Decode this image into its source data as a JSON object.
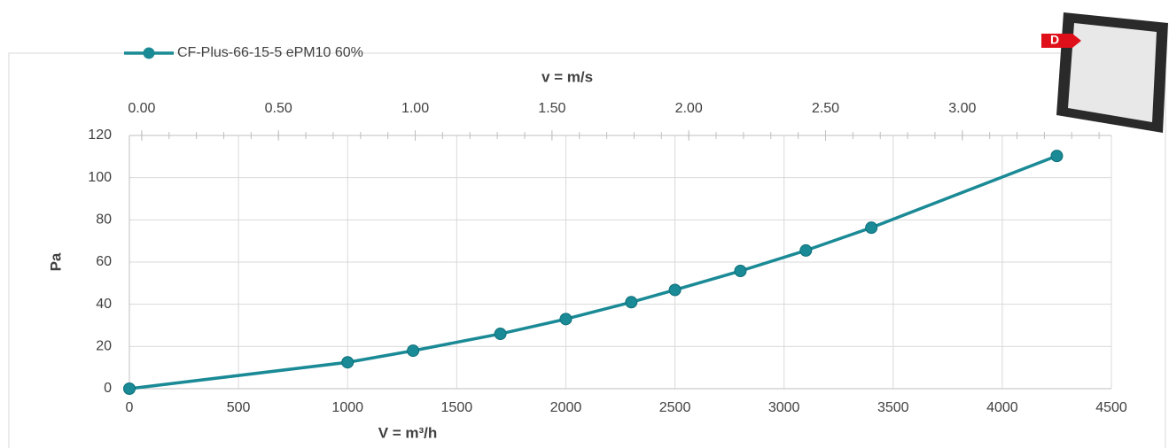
{
  "chart_data": {
    "type": "line",
    "xlabel": "V = m³/h",
    "ylabel": "Pa",
    "x2label": "v = m/s",
    "image_label": "D",
    "xlim": [
      0,
      4500
    ],
    "xticks": [
      0,
      500,
      1000,
      1500,
      2000,
      2500,
      3000,
      3500,
      4000,
      4500
    ],
    "ylim": [
      0,
      120
    ],
    "yticks": [
      0,
      20,
      40,
      60,
      80,
      100,
      120
    ],
    "x2lim": [
      -0.045,
      3.545
    ],
    "x2ticks": [
      {
        "value": 0,
        "label": "0.00"
      },
      {
        "value": 0.5,
        "label": "0.50"
      },
      {
        "value": 1,
        "label": "1.00"
      },
      {
        "value": 1.5,
        "label": "1.50"
      },
      {
        "value": 2,
        "label": "2.00"
      },
      {
        "value": 2.5,
        "label": "2.50"
      },
      {
        "value": 3,
        "label": "3.00"
      }
    ],
    "grid": true,
    "legend": "top-left",
    "series": [
      {
        "name": "CF-Plus-66-15-5 ePM10 60%",
        "color": "#1a8a96",
        "x": [
          0,
          1000,
          1300,
          1700,
          2000,
          2300,
          2500,
          2800,
          3100,
          3400,
          4250
        ],
        "values": [
          0,
          12.5,
          18,
          26,
          33,
          41,
          46.8,
          55.8,
          65.5,
          76.3,
          110.3
        ]
      }
    ]
  }
}
